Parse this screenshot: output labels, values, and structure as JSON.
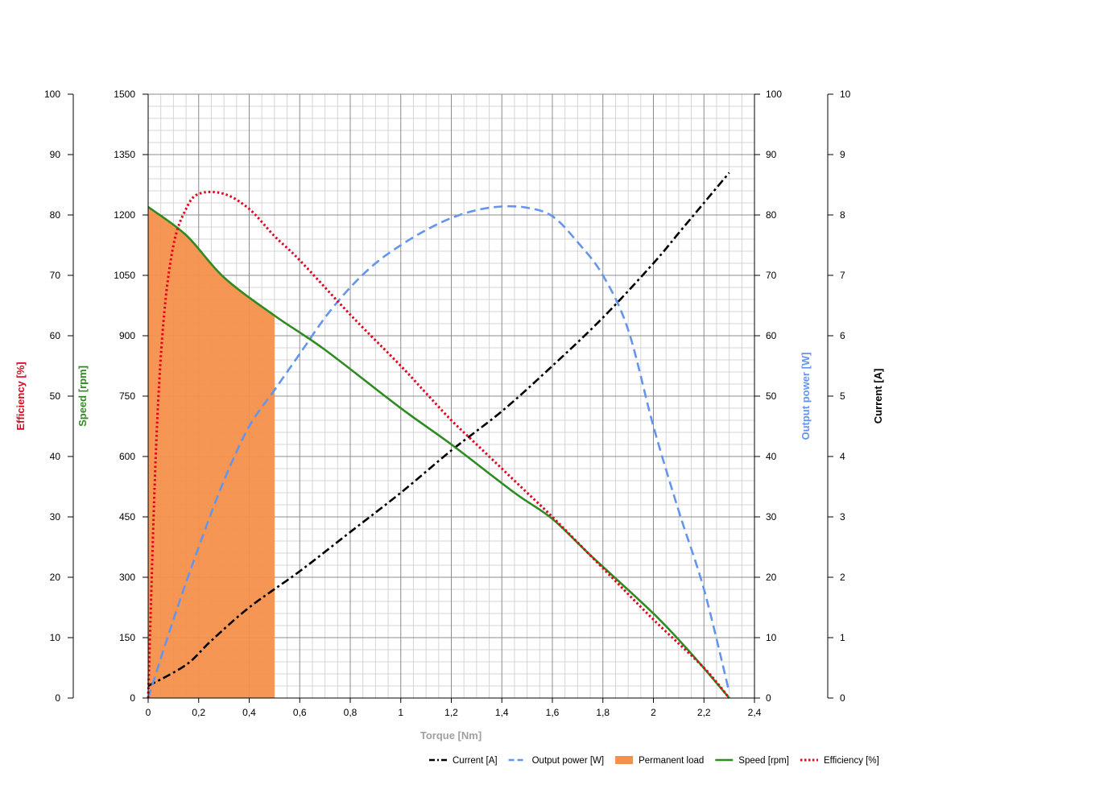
{
  "chart_data": {
    "type": "line",
    "xlabel": "Torque [Nm]",
    "xlim": [
      0,
      2.4
    ],
    "x_ticks": [
      "0",
      "0,2",
      "0,4",
      "0,6",
      "0,8",
      "1",
      "1,2",
      "1,4",
      "1,6",
      "1,8",
      "2",
      "2,2",
      "2,4"
    ],
    "grid": true,
    "legend_position": "bottom-right",
    "axes": {
      "efficiency": {
        "label": "Efficiency [%]",
        "color": "#e8001c",
        "ylim": [
          0,
          100
        ],
        "ticks": [
          "0",
          "10",
          "20",
          "30",
          "40",
          "50",
          "60",
          "70",
          "80",
          "90",
          "100"
        ]
      },
      "speed": {
        "label": "Speed [rpm]",
        "color": "#2e8b22",
        "ylim": [
          0,
          1500
        ],
        "ticks": [
          "0",
          "150",
          "300",
          "450",
          "600",
          "750",
          "900",
          "1050",
          "1200",
          "1350",
          "1500"
        ]
      },
      "output_power": {
        "label": "Output power [W]",
        "color": "#6495ed",
        "ylim": [
          0,
          100
        ],
        "ticks": [
          "0",
          "10",
          "20",
          "30",
          "40",
          "50",
          "60",
          "70",
          "80",
          "90",
          "100"
        ]
      },
      "current": {
        "label": "Current [A]",
        "color": "#000000",
        "ylim": [
          0,
          10
        ],
        "ticks": [
          "0",
          "1",
          "2",
          "3",
          "4",
          "5",
          "6",
          "7",
          "8",
          "9",
          "10"
        ]
      }
    },
    "series": [
      {
        "name": "Current [A]",
        "axis": "current",
        "style": "dashdot",
        "color": "#000000",
        "x": [
          0,
          0.15,
          0.25,
          0.4,
          0.6,
          0.8,
          1.0,
          1.2,
          1.4,
          1.6,
          1.8,
          2.0,
          2.1,
          2.2,
          2.3
        ],
        "y": [
          0.2,
          0.55,
          0.95,
          1.5,
          2.1,
          2.75,
          3.4,
          4.1,
          4.75,
          5.5,
          6.3,
          7.2,
          7.7,
          8.2,
          8.7
        ]
      },
      {
        "name": "Output power [W]",
        "axis": "output_power",
        "style": "dashed",
        "color": "#6495ed",
        "x": [
          0,
          0.1,
          0.2,
          0.3,
          0.4,
          0.5,
          0.6,
          0.7,
          0.8,
          0.9,
          1.0,
          1.1,
          1.2,
          1.3,
          1.4,
          1.5,
          1.6,
          1.7,
          1.8,
          1.9,
          2.0,
          2.1,
          2.2,
          2.3
        ],
        "y": [
          0,
          13,
          25,
          36,
          45,
          51,
          57,
          63,
          68,
          72,
          75,
          77.5,
          79.5,
          80.8,
          81.4,
          81.2,
          79.8,
          75.5,
          70,
          61,
          45,
          31,
          18,
          1
        ]
      },
      {
        "name": "Permanent load",
        "axis": "speed",
        "style": "area",
        "color": "#f4904c",
        "x": [
          0,
          0.15,
          0.3,
          0.5
        ],
        "y": [
          1220,
          1150,
          1045,
          950
        ]
      },
      {
        "name": "Speed [rpm]",
        "axis": "speed",
        "style": "solid",
        "color": "#2e8b22",
        "x": [
          0,
          0.15,
          0.3,
          0.5,
          0.7,
          1.0,
          1.2,
          1.45,
          1.6,
          1.75,
          2.0,
          2.15,
          2.3
        ],
        "y": [
          1220,
          1150,
          1045,
          950,
          865,
          720,
          630,
          510,
          445,
          355,
          210,
          110,
          0
        ]
      },
      {
        "name": "Efficiency [%]",
        "axis": "efficiency",
        "style": "dotted",
        "color": "#e8001c",
        "x": [
          0,
          0.03,
          0.06,
          0.1,
          0.15,
          0.2,
          0.3,
          0.4,
          0.5,
          0.6,
          0.8,
          1.0,
          1.1,
          1.2,
          1.3,
          1.4,
          1.5,
          1.6,
          1.8,
          2.0,
          2.2,
          2.3
        ],
        "y": [
          0,
          40,
          62,
          75,
          81,
          83.5,
          83.5,
          81,
          76.5,
          72.5,
          63.5,
          55,
          50.5,
          46,
          42,
          38,
          34,
          30,
          21.5,
          13,
          5,
          0
        ]
      }
    ]
  }
}
